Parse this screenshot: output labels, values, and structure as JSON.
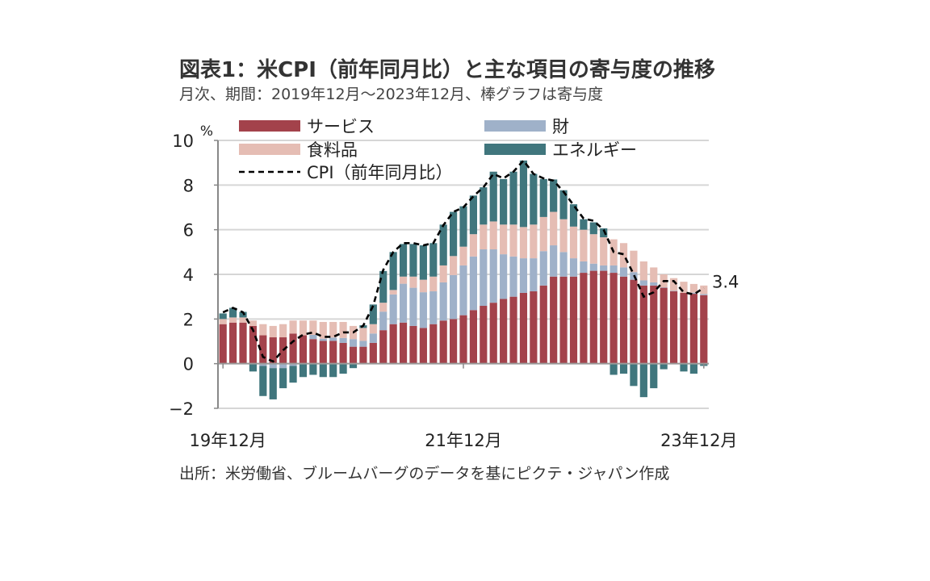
{
  "chart_data": {
    "type": "bar",
    "stacked": true,
    "title": "図表1：米CPI（前年同月比）と主な項目の寄与度の推移",
    "subtitle": "月次、期間：2019年12月～2023年12月、棒グラフは寄与度",
    "source": "出所：米労働省、ブルームバーグのデータを基にピクテ・ジャパン作成",
    "yunit": "%",
    "ylim": [
      -2,
      10
    ],
    "yticks": [
      10,
      8,
      6,
      4,
      2,
      0,
      -2
    ],
    "xtick_labels": [
      "19年12月",
      "21年12月",
      "23年12月"
    ],
    "grid": true,
    "legend_position": "top",
    "end_label": "3.4",
    "period": [
      "2019-12",
      "2023-12"
    ],
    "series": [
      {
        "name": "サービス",
        "kind": "bar",
        "color": "#a3424b",
        "values": [
          1.77,
          1.84,
          1.84,
          1.69,
          1.27,
          1.18,
          1.18,
          1.35,
          1.27,
          1.1,
          1.02,
          1.02,
          0.93,
          0.76,
          0.76,
          0.93,
          1.5,
          1.77,
          1.84,
          1.69,
          1.6,
          1.77,
          1.93,
          2.0,
          2.17,
          2.4,
          2.59,
          2.73,
          2.9,
          3.0,
          3.17,
          3.24,
          3.5,
          3.9,
          3.9,
          3.9,
          4.07,
          4.16,
          4.16,
          4.07,
          3.9,
          3.76,
          3.5,
          3.5,
          3.4,
          3.24,
          3.17,
          3.13,
          3.07
        ]
      },
      {
        "name": "財",
        "kind": "bar",
        "color": "#9fb1c9",
        "values": [
          0,
          0,
          0,
          0,
          -0.1,
          -0.2,
          -0.2,
          -0.1,
          0,
          0.19,
          0.1,
          0.15,
          0.22,
          0.34,
          0.26,
          0.42,
          0.83,
          1.33,
          1.74,
          1.71,
          1.6,
          1.47,
          1.71,
          1.97,
          2.23,
          2.4,
          2.53,
          2.39,
          2.0,
          1.8,
          1.55,
          1.48,
          1.54,
          1.4,
          1.1,
          0.82,
          0.51,
          0.32,
          0.24,
          0.33,
          0.41,
          0.34,
          0.23,
          0.14,
          0.02,
          0.02,
          0,
          0.05,
          0.05
        ]
      },
      {
        "name": "食料品",
        "kind": "bar",
        "color": "#e5bdb4",
        "values": [
          0.23,
          0.23,
          0.23,
          0.24,
          0.5,
          0.51,
          0.59,
          0.58,
          0.66,
          0.64,
          0.75,
          0.7,
          0.72,
          0.59,
          0.58,
          0.42,
          0.4,
          0.2,
          0.32,
          0.5,
          0.56,
          0.66,
          0.76,
          0.85,
          0.84,
          1.0,
          1.11,
          1.25,
          1.33,
          1.43,
          1.4,
          1.51,
          1.53,
          1.5,
          1.47,
          1.42,
          1.42,
          1.32,
          1.26,
          1.17,
          1.09,
          0.96,
          0.85,
          0.67,
          0.58,
          0.57,
          0.5,
          0.39,
          0.38
        ]
      },
      {
        "name": "エネルギー",
        "kind": "bar",
        "color": "#40767d",
        "values": [
          0.25,
          0.43,
          0.25,
          -0.35,
          -1.35,
          -1.4,
          -0.9,
          -0.75,
          -0.6,
          -0.5,
          -0.6,
          -0.6,
          -0.45,
          -0.2,
          0.12,
          0.88,
          1.42,
          1.7,
          1.46,
          1.46,
          1.54,
          1.5,
          1.83,
          1.98,
          1.81,
          1.73,
          1.67,
          2.23,
          2.04,
          2.37,
          2.98,
          2.27,
          1.7,
          1.45,
          1.3,
          1.0,
          0.47,
          0.53,
          0.4,
          -0.5,
          -0.45,
          -1.0,
          -1.5,
          -1.1,
          -0.25,
          0.0,
          -0.35,
          -0.45,
          -0.1
        ]
      },
      {
        "name": "CPI（前年同月比）",
        "kind": "line",
        "style": "dashed",
        "color": "#000000",
        "values": [
          2.3,
          2.5,
          2.3,
          1.5,
          0.3,
          0.1,
          0.6,
          1.0,
          1.3,
          1.4,
          1.2,
          1.2,
          1.4,
          1.4,
          1.7,
          2.6,
          4.2,
          5.0,
          5.4,
          5.4,
          5.3,
          5.4,
          6.2,
          6.8,
          7.0,
          7.5,
          7.9,
          8.5,
          8.3,
          8.6,
          9.1,
          8.5,
          8.3,
          8.2,
          7.7,
          7.1,
          6.5,
          6.4,
          6.0,
          5.0,
          4.9,
          4.0,
          3.0,
          3.2,
          3.7,
          3.7,
          3.2,
          3.1,
          3.4
        ]
      }
    ]
  }
}
